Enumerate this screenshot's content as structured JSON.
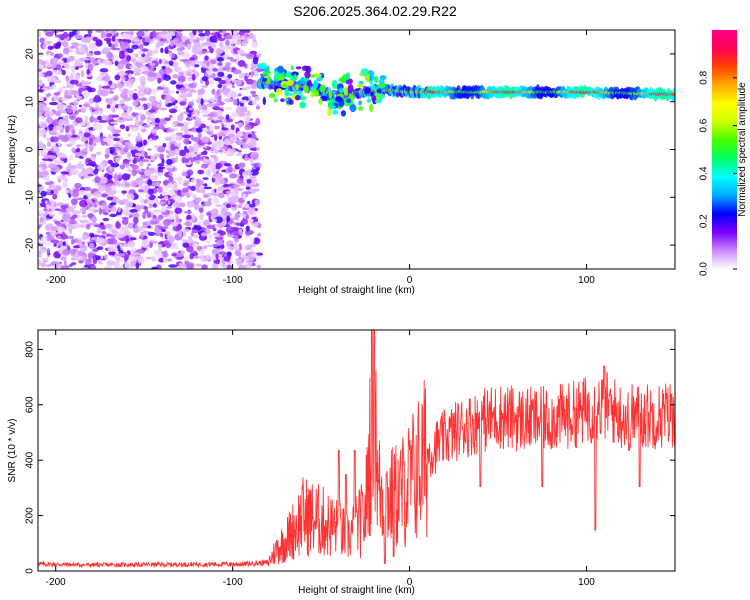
{
  "chart_data": [
    {
      "type": "heatmap",
      "title": "S206.2025.364.02.29.R22",
      "xlabel": "Height of straight line (km)",
      "ylabel": "Frequency (Hz)",
      "xlim": [
        -210,
        150
      ],
      "ylim": [
        -25,
        25
      ],
      "x_ticks": [
        -200,
        -100,
        0,
        100
      ],
      "y_ticks": [
        20,
        10,
        0,
        -10,
        -20
      ],
      "colorbar": {
        "label": "Normalized spectral amplitude",
        "range": [
          0,
          1
        ],
        "ticks": [
          "0.0",
          "0.2",
          "0.4",
          "0.6",
          "0.8"
        ],
        "colormap": [
          "#ffffff",
          "#cc88ff",
          "#7a00ff",
          "#0000ff",
          "#00aaff",
          "#00ffff",
          "#00ff66",
          "#44ff00",
          "#ccff00",
          "#ffff00",
          "#ffaa00",
          "#ff4400",
          "#ff0055",
          "#ff0088"
        ]
      },
      "regions": [
        {
          "x_range": [
            -210,
            -85
          ],
          "y_range": [
            -25,
            25
          ],
          "amplitude_range": [
            0.0,
            0.15
          ],
          "description": "diffuse noise"
        },
        {
          "x_range": [
            -85,
            150
          ],
          "center_frequency": [
            [
              -85,
              14
            ],
            [
              -70,
              13.5
            ],
            [
              -55,
              13
            ],
            [
              -40,
              11
            ],
            [
              -30,
              12
            ],
            [
              -15,
              12.5
            ],
            [
              0,
              12
            ],
            [
              50,
              12
            ],
            [
              100,
              12
            ],
            [
              150,
              11.5
            ]
          ],
          "amplitude_range": [
            0.2,
            1.0
          ],
          "description": "narrow-band signal near 12 Hz"
        }
      ]
    },
    {
      "type": "line",
      "xlabel": "Height of straight line (km)",
      "ylabel": "SNR (10 * v/v)",
      "xlim": [
        -210,
        150
      ],
      "ylim": [
        0,
        870
      ],
      "x_ticks": [
        -200,
        -100,
        0,
        100
      ],
      "y_ticks": [
        0,
        200,
        400,
        600,
        800
      ],
      "color": "#ff3333",
      "series": [
        {
          "x": [
            -210,
            -180,
            -150,
            -120,
            -95,
            -80,
            -75,
            -70,
            -60,
            -50,
            -40,
            -35,
            -30,
            -25,
            -22,
            -20,
            -18,
            -15,
            -10,
            -5,
            0,
            10,
            20,
            30,
            40,
            50,
            60,
            70,
            80,
            90,
            100,
            110,
            120,
            130,
            140,
            150
          ],
          "y": [
            25,
            22,
            23,
            24,
            25,
            30,
            80,
            110,
            200,
            180,
            150,
            120,
            160,
            200,
            500,
            870,
            300,
            280,
            260,
            280,
            320,
            420,
            480,
            520,
            540,
            560,
            550,
            545,
            550,
            560,
            580,
            600,
            560,
            560,
            560,
            570
          ],
          "spikes": [
            [
              -40,
              0.5
            ],
            [
              -36,
              0.4
            ],
            [
              -31,
              0.5
            ],
            [
              -20,
              1.0
            ],
            [
              -14,
              0.1
            ],
            [
              -9,
              0.2
            ],
            [
              40,
              0.35
            ],
            [
              75,
              0.35
            ],
            [
              105,
              0.25
            ],
            [
              110,
              0.85
            ],
            [
              124,
              0.5
            ],
            [
              130,
              0.35
            ]
          ]
        }
      ]
    }
  ]
}
